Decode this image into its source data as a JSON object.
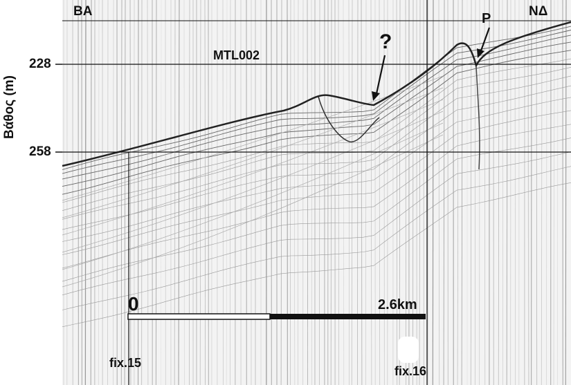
{
  "figure": {
    "corner_left": "ΒΑ",
    "corner_right": "ΝΔ",
    "profile_id": "MTL002",
    "y_axis_label": "Βάθος (m)",
    "depth_ticks": [
      "228",
      "258"
    ],
    "annotation_question": "?",
    "annotation_p": "P",
    "scale_start": "0",
    "scale_end": "2.6km",
    "fix_left": "fix.15",
    "fix_right": "fix.16"
  }
}
